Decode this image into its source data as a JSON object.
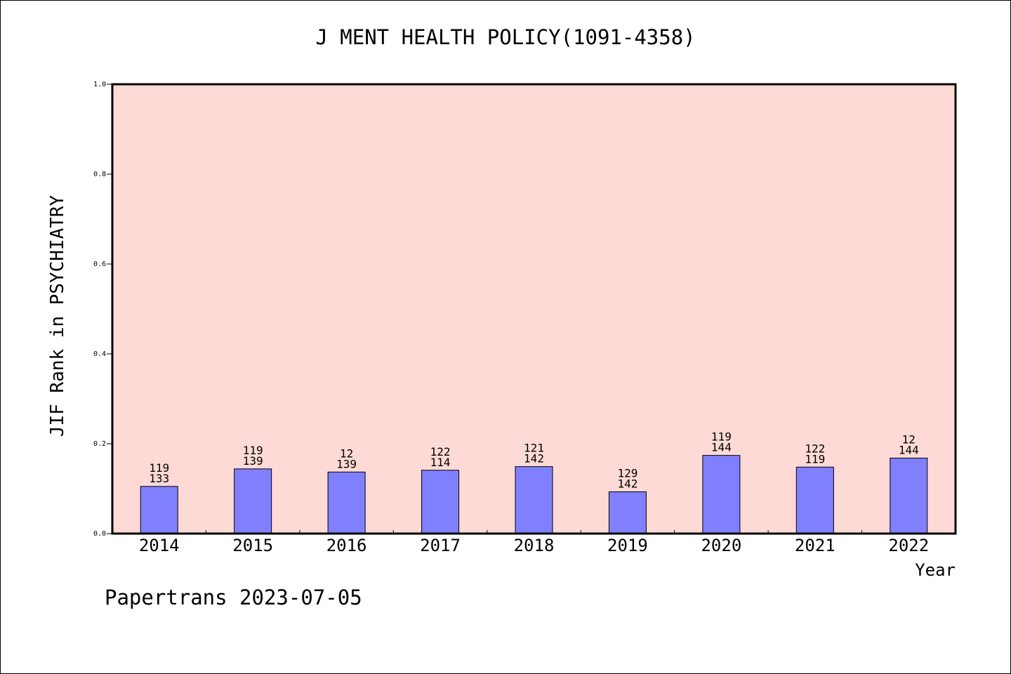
{
  "chart_data": {
    "type": "bar",
    "title": "J MENT HEALTH POLICY(1091-4358)",
    "xlabel": "Year",
    "ylabel": "JIF Rank in PSYCHIATRY",
    "ylim": [
      0,
      1.0
    ],
    "yticks": [
      "0.0",
      "0.2",
      "0.4",
      "0.6",
      "0.8",
      "1.0"
    ],
    "categories": [
      "2014",
      "2015",
      "2016",
      "2017",
      "2018",
      "2019",
      "2020",
      "2021",
      "2022"
    ],
    "values": [
      0.105,
      0.144,
      0.137,
      0.141,
      0.149,
      0.093,
      0.174,
      0.148,
      0.168
    ],
    "labels_top": [
      "119",
      "119",
      "12",
      "122",
      "121",
      "129",
      "119",
      "122",
      "12"
    ],
    "labels_bottom": [
      "133",
      "139",
      "139",
      "114",
      "142",
      "142",
      "144",
      "119",
      "144"
    ],
    "grid": false,
    "legend": "none"
  },
  "colors": {
    "plot_bg": "#fddad6",
    "bar": "#8080ff",
    "axis": "#000000"
  },
  "footer": "Papertrans 2023-07-05"
}
